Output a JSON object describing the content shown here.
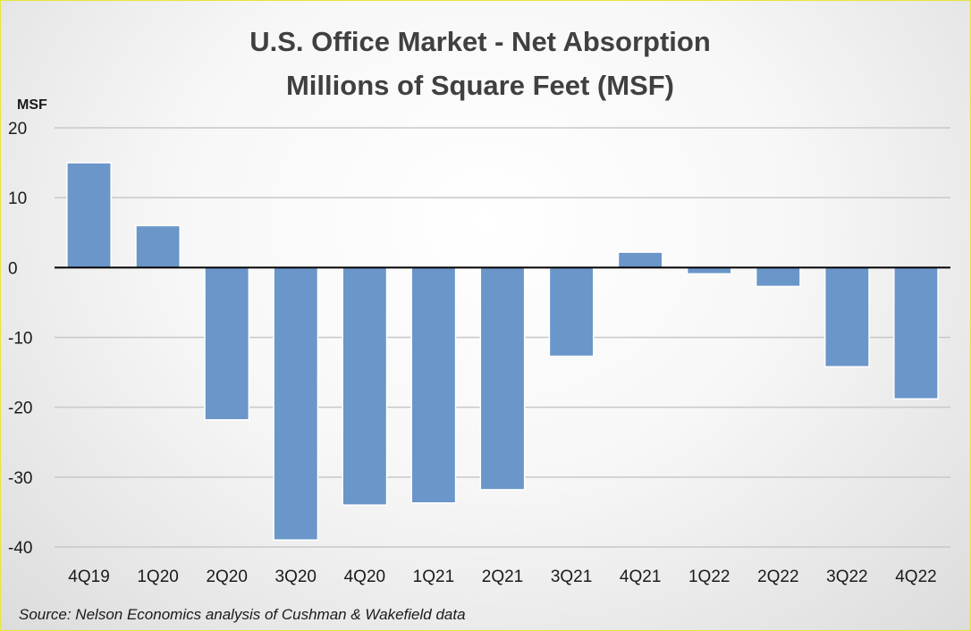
{
  "chart_data": {
    "type": "bar",
    "title": "U.S. Office Market - Net Absorption",
    "subtitle": "Millions of Square Feet (MSF)",
    "ylabel": "MSF",
    "xlabel": "",
    "categories": [
      "4Q19",
      "1Q20",
      "2Q20",
      "3Q20",
      "4Q20",
      "1Q21",
      "2Q21",
      "3Q21",
      "4Q21",
      "1Q22",
      "2Q22",
      "3Q22",
      "4Q22"
    ],
    "values": [
      15,
      6,
      -21.8,
      -39,
      -34,
      -33.7,
      -31.8,
      -12.7,
      2.2,
      -0.9,
      -2.7,
      -14.2,
      -18.8
    ],
    "ylim": [
      -40,
      20
    ],
    "yticks": [
      20,
      10,
      0,
      -10,
      -20,
      -30,
      -40
    ],
    "grid": true,
    "legend": "none",
    "bar_color": "#6a96c9",
    "bar_edge_color": "#ffffff",
    "zero_line_color": "#000000",
    "grid_color": "#c8c8c8"
  },
  "source": "Source: Nelson Economics analysis of Cushman & Wakefield data"
}
